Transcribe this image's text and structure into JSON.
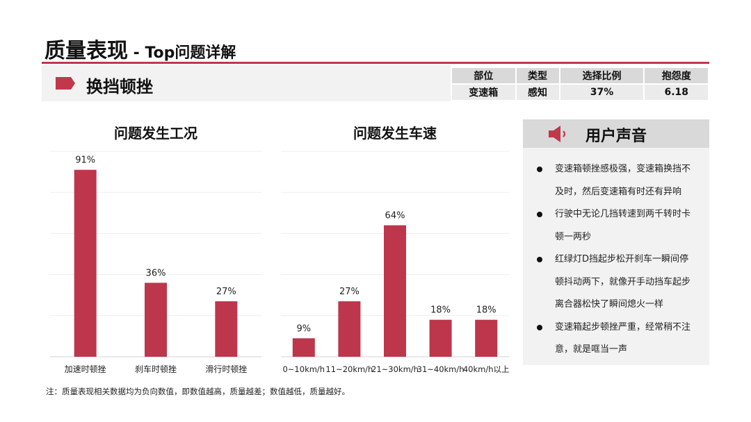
{
  "header": {
    "title_main": "质量表现",
    "title_sub": " - Top问题详解"
  },
  "issue": {
    "label": "换挡顿挫",
    "table": {
      "headers": [
        "部位",
        "类型",
        "选择比例",
        "抱怨度"
      ],
      "values": [
        "变速箱",
        "感知",
        "37%",
        "6.18"
      ]
    }
  },
  "colors": {
    "accent": "#c0384a",
    "bar": "#be364b",
    "header_bg": "#f2f2f2",
    "table_head_bg": "#d9d9d9"
  },
  "chart_data": [
    {
      "type": "bar",
      "title": "问题发生工况",
      "categories": [
        "加速时顿挫",
        "刹车时顿挫",
        "滑行时顿挫"
      ],
      "values": [
        91,
        36,
        27
      ],
      "value_labels": [
        "91%",
        "36%",
        "27%"
      ],
      "ylim": [
        0,
        100
      ],
      "grid": true,
      "legend": "none"
    },
    {
      "type": "bar",
      "title": "问题发生车速",
      "categories": [
        "0~10km/h",
        "11~20km/h",
        "21~30km/h",
        "31~40km/h",
        "40km/h以上"
      ],
      "values": [
        9,
        27,
        64,
        18,
        18
      ],
      "value_labels": [
        "9%",
        "27%",
        "64%",
        "18%",
        "18%"
      ],
      "ylim": [
        0,
        100
      ],
      "grid": true,
      "legend": "none"
    }
  ],
  "voice": {
    "title": "用户声音",
    "icon": "speaker-icon",
    "items": [
      "变速箱顿挫感极强，变速箱换挡不及时，然后变速箱有时还有异响",
      "行驶中无论几挡转速到两千转时卡顿一两秒",
      "红绿灯D挡起步松开刹车一瞬间停顿抖动两下，就像开手动挡车起步离合器松快了瞬间熄火一样",
      "变速箱起步顿挫严重，经常稍不注意，就是哐当一声"
    ]
  },
  "footnote": "注：质量表现相关数据均为负向数值，即数值越高，质量越差；数值越低，质量越好。"
}
